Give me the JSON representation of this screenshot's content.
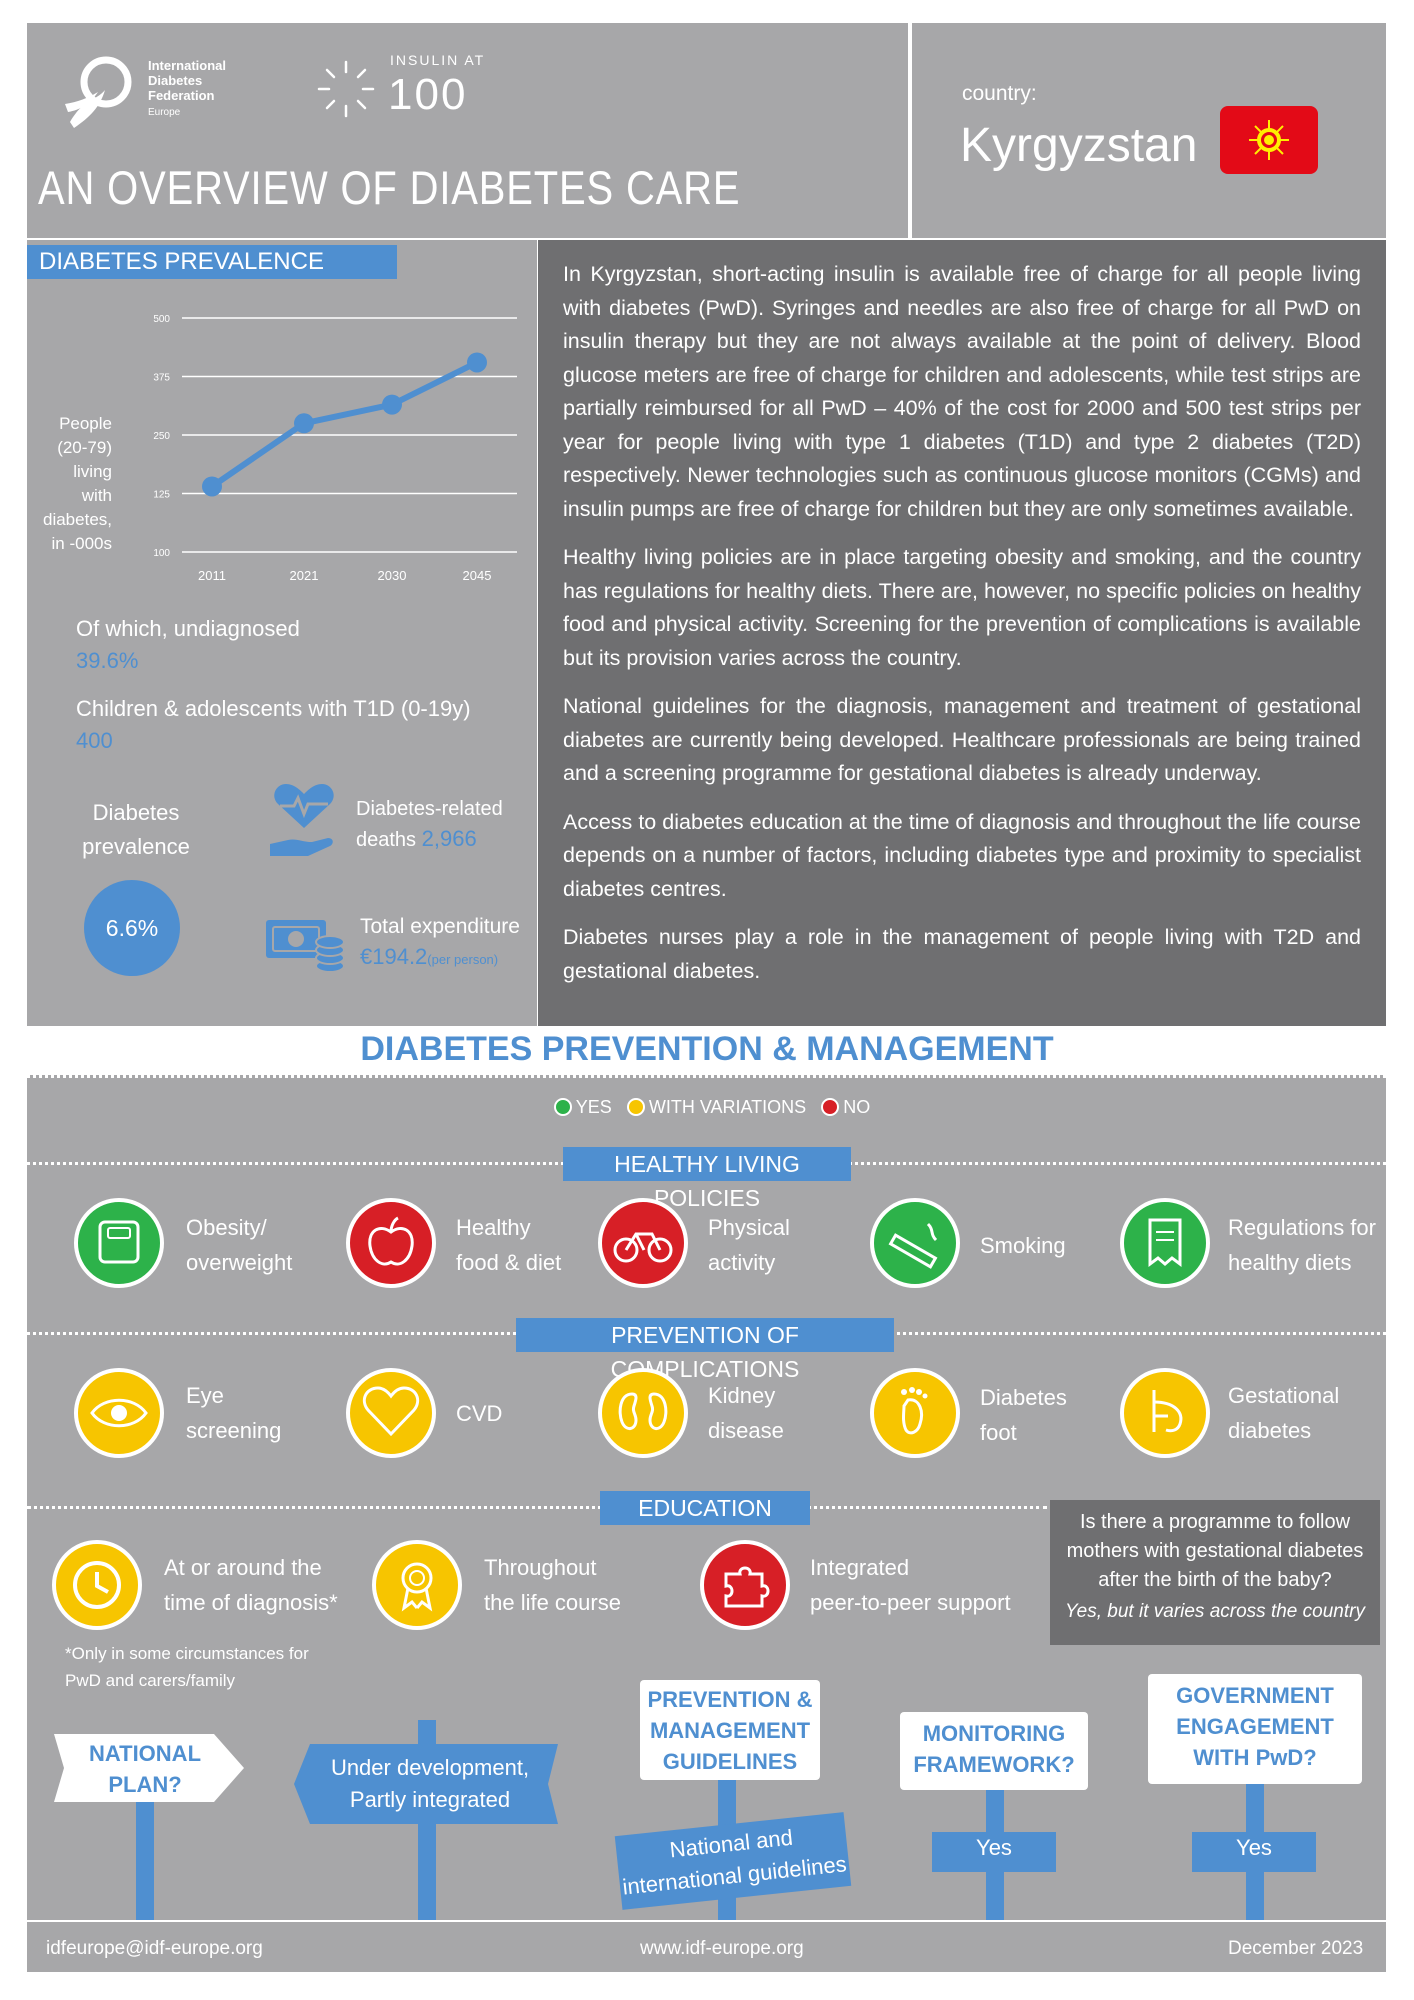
{
  "header": {
    "logo_line1": "International",
    "logo_line2": "Diabetes",
    "logo_line3": "Federation",
    "logo_line4": "Europe",
    "insulin_label": "INSULIN AT",
    "insulin_number": "100",
    "title": "AN OVERVIEW OF DIABETES CARE",
    "country_label": "country:",
    "country_name": "Kyrgyzstan"
  },
  "prevalence": {
    "section_title": "DIABETES PREVALENCE",
    "y_axis_label": [
      "People",
      "(20-79)",
      "living",
      "with",
      "diabetes,",
      "in -000s"
    ],
    "undiagnosed_label": "Of which, undiagnosed",
    "undiagnosed_value": "39.6%",
    "children_label": "Children & adolescents with T1D (0-19y)",
    "children_value": "400",
    "prevalence_label_1": "Diabetes",
    "prevalence_label_2": "prevalence",
    "prevalence_value": "6.6%",
    "deaths_label_1": "Diabetes-related",
    "deaths_label_2": "deaths",
    "deaths_value": "2,966",
    "expenditure_label": "Total expenditure",
    "expenditure_value": "€194.2",
    "expenditure_unit": "(per person)"
  },
  "chart_data": {
    "type": "line",
    "x": [
      "2011",
      "2021",
      "2030",
      "2045"
    ],
    "series": [
      {
        "values": [
          140,
          275,
          315,
          405
        ]
      }
    ],
    "ylim": [
      100,
      500
    ],
    "yticks": [
      "100",
      "125",
      "250",
      "375",
      "500"
    ],
    "grid": true
  },
  "body": {
    "p1": "In Kyrgyzstan, short-acting insulin is available free of charge for all people living with diabetes (PwD). Syringes and needles are also free of charge for all PwD on insulin therapy but they are not always available at the point of delivery. Blood glucose meters are free of charge for children and adolescents, while test strips are partially reimbursed for all PwD – 40% of the cost for 2000 and 500 test strips per year for people living with type 1 diabetes (T1D) and type 2 diabetes (T2D) respectively. Newer technologies such as continuous glucose monitors (CGMs) and insulin pumps are free of charge for children but they are only sometimes available.",
    "p2": "Healthy living policies are in place targeting obesity and smoking, and the country has regulations for healthy diets. There are, however, no specific policies on healthy food and physical activity. Screening for the prevention of complications is available but its provision varies across the country.",
    "p3": "National guidelines for the diagnosis, management and treatment of gestational diabetes are currently being developed. Healthcare professionals are being trained and a screening programme for gestational diabetes is already underway.",
    "p4": "Access to diabetes education at the time of diagnosis and throughout the life course depends on a number of factors, including diabetes type and proximity to specialist diabetes centres.",
    "p5": "Diabetes nurses play a role in the management of people living with T2D and gestational diabetes."
  },
  "prevention": {
    "title": "DIABETES PREVENTION & MANAGEMENT",
    "legend_yes": "YES",
    "legend_variations": "WITH VARIATIONS",
    "legend_no": "NO",
    "colors": {
      "yes": "#2db24a",
      "variations": "#f7c500",
      "no": "#d71f26",
      "accent": "#4f8fd0"
    },
    "healthy_living_title": "HEALTHY LIVING POLICIES",
    "healthy_living": [
      {
        "l1": "Obesity/",
        "l2": "overweight",
        "status": "yes",
        "icon": "scale-icon"
      },
      {
        "l1": "Healthy",
        "l2": "food & diet",
        "status": "no",
        "icon": "apple-icon"
      },
      {
        "l1": "Physical",
        "l2": "activity",
        "status": "no",
        "icon": "bicycle-icon"
      },
      {
        "l1": "Smoking",
        "l2": "",
        "status": "yes",
        "icon": "cigarette-icon"
      },
      {
        "l1": "Regulations for",
        "l2": "healthy diets",
        "status": "yes",
        "icon": "document-icon"
      }
    ],
    "complications_title": "PREVENTION OF COMPLICATIONS",
    "complications": [
      {
        "l1": "Eye",
        "l2": "screening",
        "status": "variations",
        "icon": "eye-icon"
      },
      {
        "l1": "CVD",
        "l2": "",
        "status": "variations",
        "icon": "heart-icon"
      },
      {
        "l1": "Kidney",
        "l2": "disease",
        "status": "variations",
        "icon": "kidney-icon"
      },
      {
        "l1": "Diabetes",
        "l2": "foot",
        "status": "variations",
        "icon": "foot-icon"
      },
      {
        "l1": "Gestational",
        "l2": "diabetes",
        "status": "variations",
        "icon": "pregnancy-icon"
      }
    ],
    "education_title": "EDUCATION",
    "education": [
      {
        "l1": "At or around the",
        "l2": "time of diagnosis*",
        "status": "variations",
        "icon": "clock-icon"
      },
      {
        "l1": "Throughout",
        "l2": "the life course",
        "status": "variations",
        "icon": "ribbon-icon"
      },
      {
        "l1": "Integrated",
        "l2": "peer-to-peer support",
        "status": "no",
        "icon": "puzzle-icon"
      }
    ],
    "footnote_1": "*Only in some circumstances for",
    "footnote_2": "PwD and carers/family",
    "question_l1": "Is there a programme to follow",
    "question_l2": "mothers with gestational diabetes",
    "question_l3": "after the birth of the baby?",
    "question_answer": "Yes, but it varies across the country"
  },
  "signs": {
    "national_plan_q1": "NATIONAL",
    "national_plan_q2": "PLAN?",
    "national_plan_a1": "Under development,",
    "national_plan_a2": "Partly integrated",
    "guidelines_q1": "PREVENTION &",
    "guidelines_q2": "MANAGEMENT",
    "guidelines_q3": "GUIDELINES",
    "guidelines_a1": "National and",
    "guidelines_a2": "international guidelines",
    "monitoring_q1": "MONITORING",
    "monitoring_q2": "FRAMEWORK?",
    "monitoring_a": "Yes",
    "government_q1": "GOVERNMENT",
    "government_q2": "ENGAGEMENT",
    "government_q3": "WITH PwD?",
    "government_a": "Yes"
  },
  "footer": {
    "email": "idfeurope@idf-europe.org",
    "website": "www.idf-europe.org",
    "date": "December 2023"
  }
}
